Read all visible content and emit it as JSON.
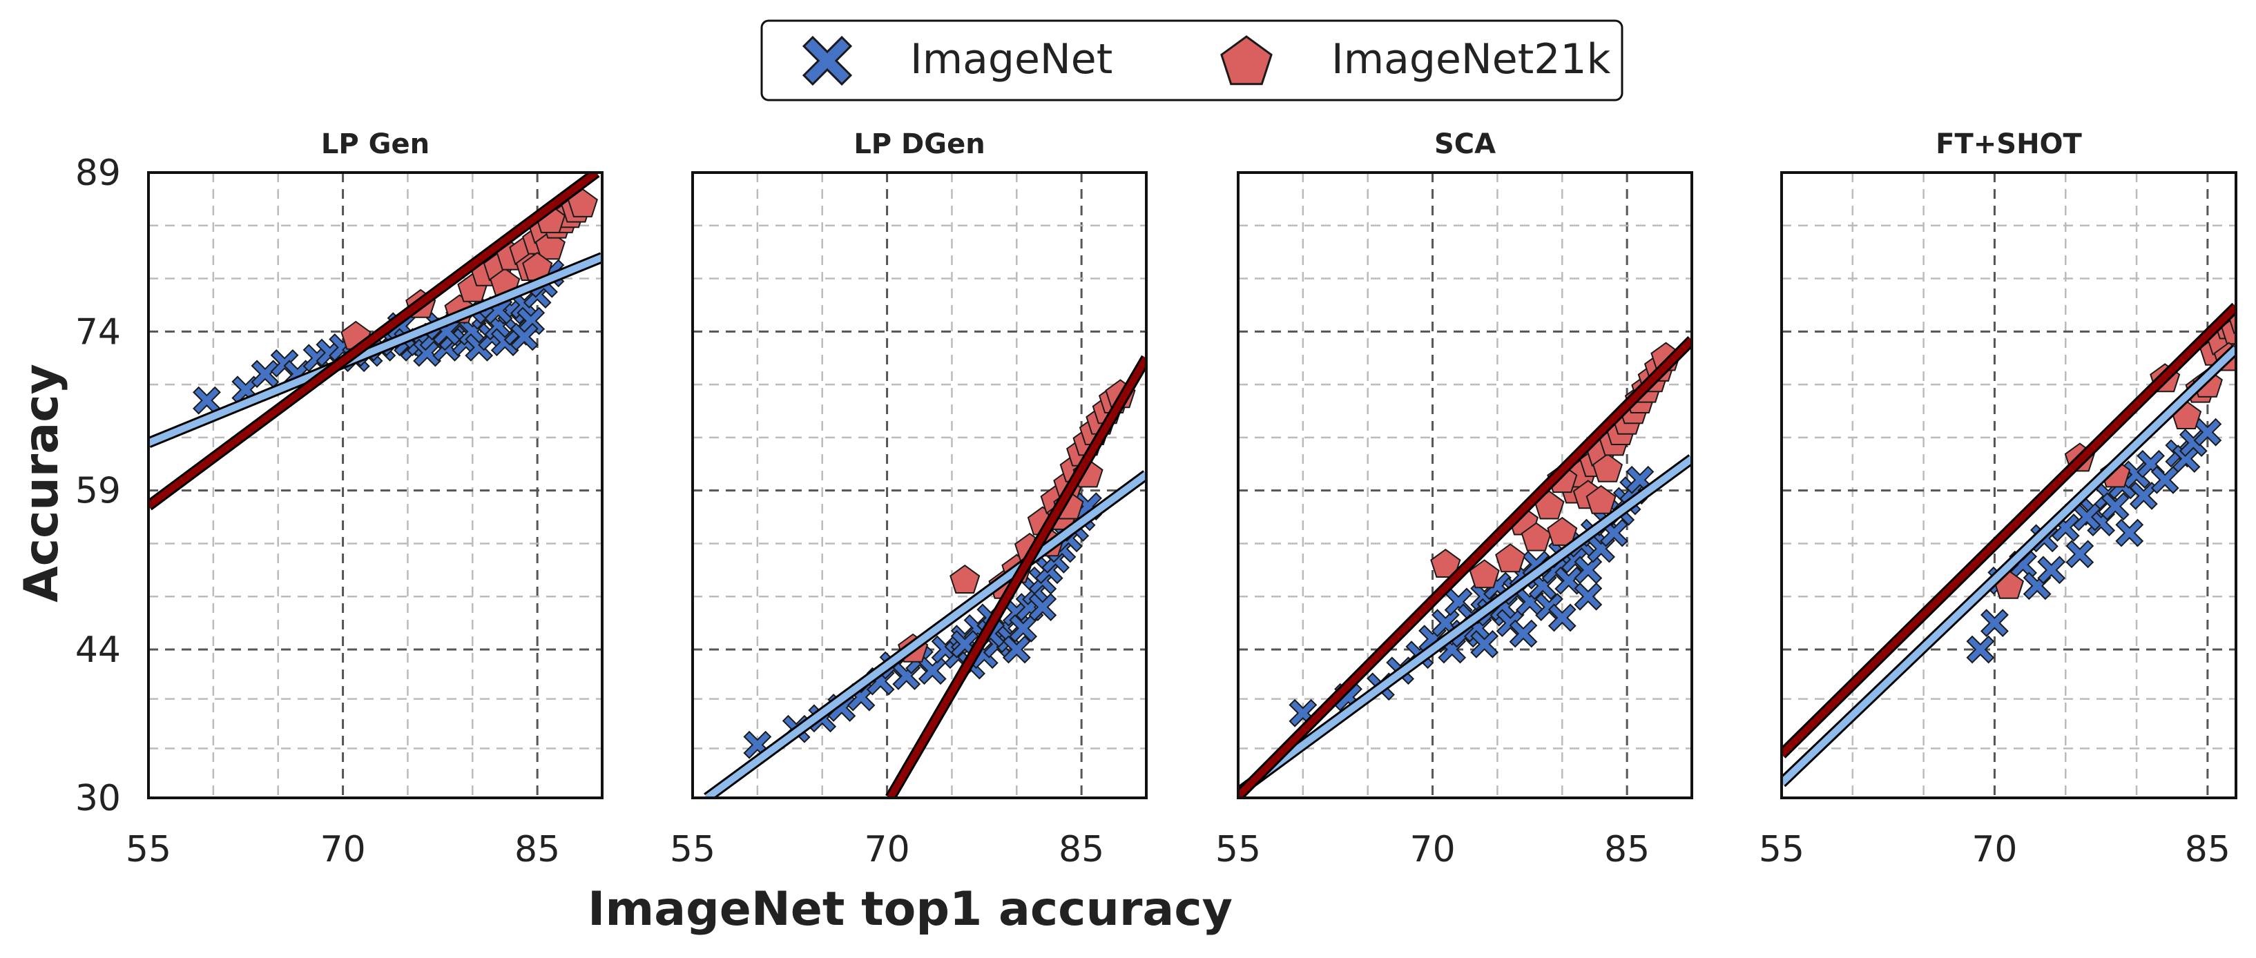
{
  "figure": {
    "xlabel": "ImageNet top1 accuracy",
    "ylabel": "Accuracy"
  },
  "legend": {
    "placement": "top-center",
    "entries": [
      {
        "name": "ImageNet",
        "marker": "x-icon",
        "color": "#4472C4"
      },
      {
        "name": "ImageNet21k",
        "marker": "pentagon-icon",
        "color": "#D9605F"
      }
    ]
  },
  "colors": {
    "imagenet_marker": "#4472C4",
    "imagenet21k_marker": "#D9605F",
    "imagenet_line": "#8EBBEB",
    "imagenet21k_line": "#8B0000",
    "marker_edge": "#1A1A1A",
    "grid_major": "#555555",
    "grid_minor": "#BBBBBB"
  },
  "chart_data": [
    {
      "type": "scatter",
      "title": "LP Gen",
      "xlim": [
        55,
        90
      ],
      "ylim": [
        30,
        89
      ],
      "xticks": [
        55,
        70,
        85
      ],
      "yticks": [
        30,
        44,
        59,
        74,
        89
      ],
      "grid": true,
      "series": [
        {
          "name": "ImageNet",
          "points": [
            [
              59.5,
              67.5
            ],
            [
              62.5,
              68.5
            ],
            [
              64.0,
              70.0
            ],
            [
              65.5,
              71.0
            ],
            [
              66.5,
              70.0
            ],
            [
              68.0,
              71.5
            ],
            [
              69.0,
              72.0
            ],
            [
              70.0,
              72.5
            ],
            [
              71.0,
              71.5
            ],
            [
              72.0,
              72.0
            ],
            [
              73.0,
              72.5
            ],
            [
              74.0,
              73.0
            ],
            [
              74.5,
              74.5
            ],
            [
              75.0,
              73.0
            ],
            [
              75.5,
              72.5
            ],
            [
              76.0,
              73.0
            ],
            [
              76.5,
              72.0
            ],
            [
              77.0,
              73.5
            ],
            [
              77.5,
              74.5
            ],
            [
              78.0,
              72.5
            ],
            [
              78.5,
              73.5
            ],
            [
              79.0,
              75.0
            ],
            [
              79.5,
              73.0
            ],
            [
              80.0,
              74.0
            ],
            [
              80.5,
              72.5
            ],
            [
              81.0,
              75.5
            ],
            [
              81.5,
              73.5
            ],
            [
              82.0,
              74.5
            ],
            [
              82.5,
              73.0
            ],
            [
              83.0,
              76.0
            ],
            [
              83.5,
              74.0
            ],
            [
              84.0,
              76.5
            ],
            [
              84.5,
              75.0
            ],
            [
              85.0,
              77.5
            ],
            [
              85.5,
              78.5
            ],
            [
              86.0,
              79.5
            ],
            [
              84.0,
              73.5
            ],
            [
              82.0,
              76.0
            ],
            [
              80.0,
              76.0
            ],
            [
              78.0,
              74.0
            ]
          ],
          "fit": {
            "slope": 0.5,
            "intercept": 36.0
          }
        },
        {
          "name": "ImageNet21k",
          "points": [
            [
              71.0,
              73.5
            ],
            [
              76.0,
              76.5
            ],
            [
              79.0,
              76.0
            ],
            [
              80.0,
              78.0
            ],
            [
              81.0,
              79.5
            ],
            [
              82.0,
              80.0
            ],
            [
              82.5,
              78.5
            ],
            [
              83.0,
              81.0
            ],
            [
              84.0,
              81.5
            ],
            [
              84.5,
              80.0
            ],
            [
              85.0,
              82.5
            ],
            [
              85.5,
              83.5
            ],
            [
              86.0,
              82.0
            ],
            [
              86.5,
              84.0
            ],
            [
              87.0,
              84.5
            ],
            [
              87.5,
              85.0
            ],
            [
              88.0,
              85.5
            ],
            [
              88.5,
              86.0
            ],
            [
              85.0,
              80.0
            ],
            [
              86.0,
              84.5
            ]
          ],
          "fit": {
            "slope": 0.91,
            "intercept": 7.5
          }
        }
      ]
    },
    {
      "type": "scatter",
      "title": "LP DGen",
      "xlim": [
        55,
        90
      ],
      "ylim": [
        30,
        89
      ],
      "xticks": [
        55,
        70,
        85
      ],
      "yticks": [
        30,
        44,
        59,
        74,
        89
      ],
      "grid": true,
      "series": [
        {
          "name": "ImageNet",
          "points": [
            [
              60.0,
              35.0
            ],
            [
              63.0,
              36.5
            ],
            [
              65.0,
              37.5
            ],
            [
              66.5,
              38.5
            ],
            [
              68.0,
              39.5
            ],
            [
              69.5,
              41.0
            ],
            [
              70.5,
              42.5
            ],
            [
              71.5,
              41.5
            ],
            [
              72.5,
              43.0
            ],
            [
              73.5,
              42.0
            ],
            [
              74.5,
              44.0
            ],
            [
              75.5,
              43.5
            ],
            [
              76.0,
              45.0
            ],
            [
              76.5,
              42.5
            ],
            [
              77.0,
              46.0
            ],
            [
              77.5,
              43.5
            ],
            [
              78.0,
              47.0
            ],
            [
              78.5,
              44.5
            ],
            [
              79.0,
              46.0
            ],
            [
              79.5,
              45.0
            ],
            [
              80.0,
              47.5
            ],
            [
              80.5,
              46.0
            ],
            [
              81.0,
              48.0
            ],
            [
              81.5,
              49.5
            ],
            [
              82.0,
              50.5
            ],
            [
              82.5,
              51.5
            ],
            [
              83.0,
              52.5
            ],
            [
              83.5,
              53.5
            ],
            [
              84.0,
              54.5
            ],
            [
              84.5,
              55.5
            ],
            [
              85.0,
              56.5
            ],
            [
              85.5,
              57.5
            ],
            [
              80.0,
              44.0
            ],
            [
              78.0,
              45.5
            ],
            [
              82.0,
              48.0
            ],
            [
              76.0,
              44.5
            ]
          ],
          "fit": {
            "slope": 0.9,
            "intercept": -20.5
          }
        },
        {
          "name": "ImageNet21k",
          "points": [
            [
              72.0,
              44.0
            ],
            [
              76.0,
              50.5
            ],
            [
              79.0,
              50.0
            ],
            [
              80.0,
              51.5
            ],
            [
              81.0,
              53.5
            ],
            [
              82.0,
              56.0
            ],
            [
              82.5,
              54.0
            ],
            [
              83.0,
              58.0
            ],
            [
              83.5,
              56.5
            ],
            [
              84.0,
              59.5
            ],
            [
              84.5,
              61.0
            ],
            [
              85.0,
              62.5
            ],
            [
              85.5,
              63.5
            ],
            [
              86.0,
              64.5
            ],
            [
              86.5,
              65.5
            ],
            [
              87.0,
              66.5
            ],
            [
              87.5,
              67.5
            ],
            [
              88.0,
              68.0
            ],
            [
              84.0,
              57.5
            ],
            [
              85.5,
              60.5
            ]
          ],
          "fit": {
            "slope": 2.1,
            "intercept": -117.5
          }
        }
      ]
    },
    {
      "type": "scatter",
      "title": "SCA",
      "xlim": [
        55,
        90
      ],
      "ylim": [
        30,
        89
      ],
      "xticks": [
        55,
        70,
        85
      ],
      "yticks": [
        30,
        44,
        59,
        74,
        89
      ],
      "grid": true,
      "series": [
        {
          "name": "ImageNet",
          "points": [
            [
              60.0,
              38.0
            ],
            [
              63.5,
              39.5
            ],
            [
              66.0,
              40.5
            ],
            [
              67.5,
              42.0
            ],
            [
              69.0,
              43.5
            ],
            [
              70.0,
              45.0
            ],
            [
              71.0,
              46.5
            ],
            [
              71.5,
              44.0
            ],
            [
              72.0,
              48.5
            ],
            [
              72.5,
              45.5
            ],
            [
              73.0,
              47.0
            ],
            [
              73.5,
              46.0
            ],
            [
              74.0,
              49.0
            ],
            [
              74.5,
              47.5
            ],
            [
              75.0,
              50.0
            ],
            [
              75.5,
              48.0
            ],
            [
              76.0,
              46.5
            ],
            [
              76.5,
              49.5
            ],
            [
              77.0,
              51.0
            ],
            [
              77.5,
              48.5
            ],
            [
              78.0,
              52.0
            ],
            [
              78.5,
              50.0
            ],
            [
              79.0,
              48.0
            ],
            [
              79.5,
              51.5
            ],
            [
              80.0,
              53.0
            ],
            [
              80.5,
              50.5
            ],
            [
              81.0,
              52.5
            ],
            [
              81.5,
              54.0
            ],
            [
              82.0,
              51.5
            ],
            [
              82.5,
              55.0
            ],
            [
              83.0,
              53.5
            ],
            [
              83.5,
              56.0
            ],
            [
              84.0,
              55.0
            ],
            [
              84.5,
              57.0
            ],
            [
              85.0,
              58.0
            ],
            [
              85.5,
              59.0
            ],
            [
              86.0,
              60.0
            ],
            [
              74.0,
              44.5
            ],
            [
              77.0,
              45.5
            ],
            [
              80.0,
              47.0
            ],
            [
              82.0,
              49.0
            ]
          ],
          "fit": {
            "slope": 0.9,
            "intercept": -19.0
          }
        },
        {
          "name": "ImageNet21k",
          "points": [
            [
              71.0,
              52.0
            ],
            [
              74.0,
              51.0
            ],
            [
              76.0,
              52.5
            ],
            [
              77.0,
              56.0
            ],
            [
              78.0,
              54.5
            ],
            [
              79.0,
              57.5
            ],
            [
              80.0,
              55.0
            ],
            [
              81.0,
              59.0
            ],
            [
              81.5,
              60.5
            ],
            [
              82.0,
              58.5
            ],
            [
              82.5,
              61.5
            ],
            [
              83.0,
              62.5
            ],
            [
              83.5,
              61.0
            ],
            [
              84.0,
              63.5
            ],
            [
              84.5,
              64.5
            ],
            [
              85.0,
              65.5
            ],
            [
              85.5,
              66.5
            ],
            [
              86.0,
              67.5
            ],
            [
              86.5,
              68.5
            ],
            [
              87.0,
              69.5
            ],
            [
              87.5,
              70.5
            ],
            [
              88.0,
              71.5
            ],
            [
              80.0,
              60.0
            ],
            [
              83.0,
              58.0
            ]
          ],
          "fit": {
            "slope": 1.23,
            "intercept": -37.5
          }
        }
      ]
    },
    {
      "type": "scatter",
      "title": "FT+SHOT",
      "xlim": [
        55,
        87
      ],
      "ylim": [
        30,
        89
      ],
      "xticks": [
        55,
        70,
        85
      ],
      "yticks": [
        30,
        44,
        59,
        74,
        89
      ],
      "grid": true,
      "series": [
        {
          "name": "ImageNet",
          "points": [
            [
              69.0,
              44.0
            ],
            [
              70.0,
              46.5
            ],
            [
              70.5,
              50.5
            ],
            [
              72.0,
              52.0
            ],
            [
              73.0,
              50.0
            ],
            [
              73.5,
              54.5
            ],
            [
              74.0,
              51.5
            ],
            [
              75.0,
              55.5
            ],
            [
              76.0,
              53.0
            ],
            [
              77.0,
              57.0
            ],
            [
              77.5,
              56.0
            ],
            [
              78.0,
              58.5
            ],
            [
              78.5,
              57.5
            ],
            [
              79.0,
              59.5
            ],
            [
              80.0,
              60.5
            ],
            [
              80.5,
              58.5
            ],
            [
              81.0,
              61.5
            ],
            [
              82.0,
              60.0
            ],
            [
              83.0,
              62.5
            ],
            [
              83.5,
              62.0
            ],
            [
              84.0,
              63.5
            ],
            [
              85.0,
              64.5
            ],
            [
              79.5,
              55.0
            ],
            [
              76.5,
              56.5
            ]
          ],
          "fit": {
            "slope": 1.28,
            "intercept": -39.0
          }
        },
        {
          "name": "ImageNet21k",
          "points": [
            [
              71.0,
              50.0
            ],
            [
              76.0,
              62.0
            ],
            [
              78.5,
              60.5
            ],
            [
              82.0,
              69.5
            ],
            [
              83.5,
              66.0
            ],
            [
              84.5,
              68.5
            ],
            [
              85.0,
              69.0
            ],
            [
              85.5,
              72.0
            ],
            [
              86.0,
              73.0
            ],
            [
              86.5,
              74.5
            ],
            [
              87.0,
              74.0
            ],
            [
              87.5,
              75.0
            ],
            [
              88.0,
              75.5
            ],
            [
              86.5,
              71.5
            ]
          ],
          "fit": {
            "slope": 1.32,
            "intercept": -38.5
          }
        }
      ]
    }
  ]
}
